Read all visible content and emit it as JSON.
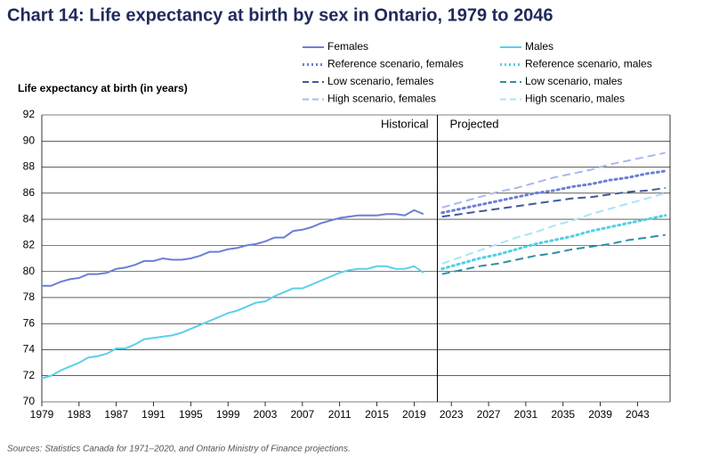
{
  "chart_data": {
    "type": "line",
    "title": "Chart 14: Life expectancy at birth by sex in Ontario, 1979 to 2046",
    "y_label": "Life expectancy at birth (in years)",
    "source": "Sources: Statistics Canada for 1971–2020, and Ontario Ministry of Finance projections.",
    "annotations": [
      "Historical",
      "Projected"
    ],
    "divider": 2021.5,
    "xlim": [
      1979,
      2046.5
    ],
    "xticks": [
      1979,
      1983,
      1987,
      1991,
      1995,
      1999,
      2003,
      2007,
      2011,
      2015,
      2019,
      2023,
      2027,
      2031,
      2035,
      2039,
      2043
    ],
    "ylim": [
      70,
      92
    ],
    "yticks": [
      70,
      72,
      74,
      76,
      78,
      80,
      82,
      84,
      86,
      88,
      90,
      92
    ],
    "grid": true,
    "series": [
      {
        "name": "Females",
        "color": "#6b7fd7",
        "style": "solid",
        "x": [
          1979,
          1980,
          1981,
          1982,
          1983,
          1984,
          1985,
          1986,
          1987,
          1988,
          1989,
          1990,
          1991,
          1992,
          1993,
          1994,
          1995,
          1996,
          1997,
          1998,
          1999,
          2000,
          2001,
          2002,
          2003,
          2004,
          2005,
          2006,
          2007,
          2008,
          2009,
          2010,
          2011,
          2012,
          2013,
          2014,
          2015,
          2016,
          2017,
          2018,
          2019,
          2020
        ],
        "values": [
          78.9,
          78.9,
          79.2,
          79.4,
          79.5,
          79.8,
          79.8,
          79.9,
          80.2,
          80.3,
          80.5,
          80.8,
          80.8,
          81.0,
          80.9,
          80.9,
          81.0,
          81.2,
          81.5,
          81.5,
          81.7,
          81.8,
          82.0,
          82.1,
          82.3,
          82.6,
          82.6,
          83.1,
          83.2,
          83.4,
          83.7,
          83.9,
          84.1,
          84.2,
          84.3,
          84.3,
          84.3,
          84.4,
          84.4,
          84.3,
          84.7,
          84.4
        ]
      },
      {
        "name": "Males",
        "color": "#5bd0e8",
        "style": "solid",
        "x": [
          1979,
          1980,
          1981,
          1982,
          1983,
          1984,
          1985,
          1986,
          1987,
          1988,
          1989,
          1990,
          1991,
          1992,
          1993,
          1994,
          1995,
          1996,
          1997,
          1998,
          1999,
          2000,
          2001,
          2002,
          2003,
          2004,
          2005,
          2006,
          2007,
          2008,
          2009,
          2010,
          2011,
          2012,
          2013,
          2014,
          2015,
          2016,
          2017,
          2018,
          2019,
          2020
        ],
        "values": [
          71.8,
          72.0,
          72.4,
          72.7,
          73.0,
          73.4,
          73.5,
          73.7,
          74.1,
          74.1,
          74.4,
          74.8,
          74.9,
          75.0,
          75.1,
          75.3,
          75.6,
          75.9,
          76.2,
          76.5,
          76.8,
          77.0,
          77.3,
          77.6,
          77.7,
          78.1,
          78.4,
          78.7,
          78.7,
          79.0,
          79.3,
          79.6,
          79.9,
          80.1,
          80.2,
          80.2,
          80.4,
          80.4,
          80.2,
          80.2,
          80.4,
          79.9
        ]
      },
      {
        "name": "Reference scenario, females",
        "color": "#6b7fd7",
        "style": "dotted",
        "x": [
          2022,
          2024,
          2026,
          2028,
          2030,
          2032,
          2034,
          2036,
          2038,
          2040,
          2042,
          2044,
          2046
        ],
        "values": [
          84.5,
          84.8,
          85.1,
          85.4,
          85.7,
          86.0,
          86.2,
          86.5,
          86.7,
          87.0,
          87.2,
          87.5,
          87.7
        ]
      },
      {
        "name": "Reference scenario, males",
        "color": "#4fd0e6",
        "style": "dotted",
        "x": [
          2022,
          2024,
          2026,
          2028,
          2030,
          2032,
          2034,
          2036,
          2038,
          2040,
          2042,
          2044,
          2046
        ],
        "values": [
          80.2,
          80.6,
          81.0,
          81.3,
          81.7,
          82.1,
          82.4,
          82.7,
          83.1,
          83.4,
          83.7,
          84.0,
          84.3
        ]
      },
      {
        "name": "Low scenario, females",
        "color": "#3e5a9a",
        "style": "dashed",
        "x": [
          2022,
          2024,
          2026,
          2028,
          2030,
          2032,
          2034,
          2036,
          2038,
          2040,
          2042,
          2044,
          2046
        ],
        "values": [
          84.2,
          84.4,
          84.6,
          84.8,
          85.0,
          85.2,
          85.4,
          85.6,
          85.7,
          85.9,
          86.1,
          86.2,
          86.4
        ]
      },
      {
        "name": "Low scenario, males",
        "color": "#2f8fa8",
        "style": "dashed",
        "x": [
          2022,
          2024,
          2026,
          2028,
          2030,
          2032,
          2034,
          2036,
          2038,
          2040,
          2042,
          2044,
          2046
        ],
        "values": [
          79.8,
          80.1,
          80.4,
          80.6,
          80.9,
          81.2,
          81.4,
          81.7,
          81.9,
          82.1,
          82.4,
          82.6,
          82.8
        ]
      },
      {
        "name": "High scenario, females",
        "color": "#a9b8ee",
        "style": "dashed",
        "x": [
          2022,
          2024,
          2026,
          2028,
          2030,
          2032,
          2034,
          2036,
          2038,
          2040,
          2042,
          2044,
          2046
        ],
        "values": [
          84.9,
          85.3,
          85.7,
          86.1,
          86.4,
          86.8,
          87.2,
          87.5,
          87.8,
          88.2,
          88.5,
          88.8,
          89.1
        ]
      },
      {
        "name": "High scenario, males",
        "color": "#a8e6f2",
        "style": "dashed",
        "x": [
          2022,
          2024,
          2026,
          2028,
          2030,
          2032,
          2034,
          2036,
          2038,
          2040,
          2042,
          2044,
          2046
        ],
        "values": [
          80.6,
          81.1,
          81.6,
          82.1,
          82.6,
          83.0,
          83.5,
          83.9,
          84.4,
          84.8,
          85.2,
          85.6,
          86.0
        ]
      }
    ]
  }
}
